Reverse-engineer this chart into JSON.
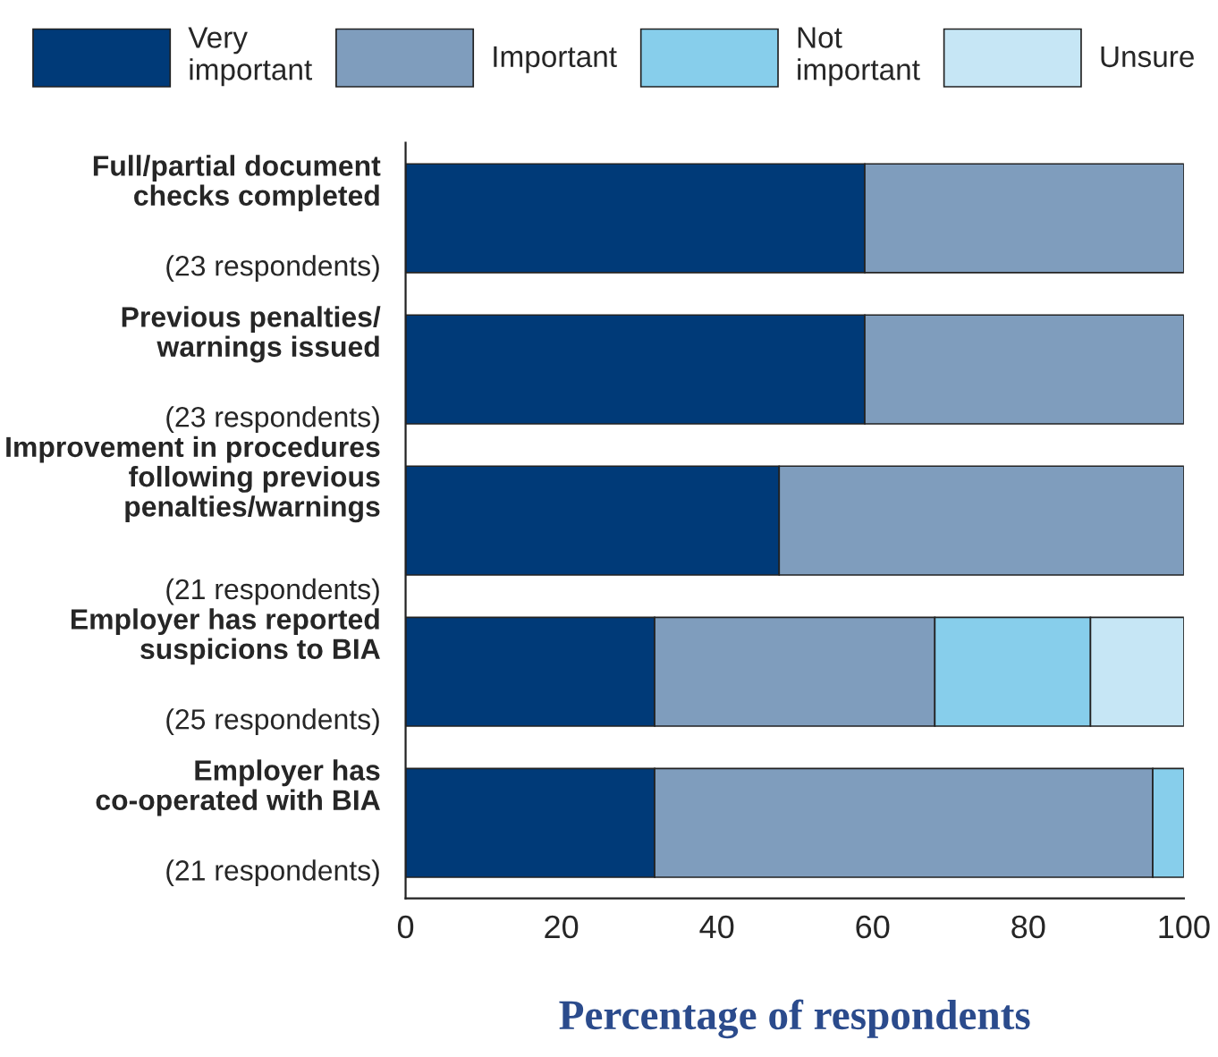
{
  "chart_data": {
    "type": "bar",
    "orientation": "horizontal",
    "stacked": true,
    "categories": [
      "Full/partial document\nchecks completed\n(23 respondents)",
      "Previous penalties/\nwarnings issued\n(23 respondents)",
      "Improvement in procedures\nfollowing previous\npenalties/warnings\n(21 respondents)",
      "Employer has reported\nsuspicions to BIA\n(25 respondents)",
      "Employer has\nco-operated with BIA\n(21 respondents)"
    ],
    "series": [
      {
        "name": "Very\nimportant",
        "color": "#003a78",
        "values": [
          59,
          59,
          48,
          32,
          32
        ]
      },
      {
        "name": "Important",
        "color": "#7f9dbd",
        "values": [
          41,
          41,
          52,
          36,
          64
        ]
      },
      {
        "name": "Not\nimportant",
        "color": "#87ceeb",
        "values": [
          0,
          0,
          0,
          20,
          4
        ]
      },
      {
        "name": "Unsure",
        "color": "#c6e6f5",
        "values": [
          0,
          0,
          0,
          12,
          0
        ]
      }
    ],
    "xlim": [
      0,
      100
    ],
    "xticks": [
      0,
      20,
      40,
      60,
      80,
      100
    ],
    "xlabel": "Percentage of respondents",
    "legend": "top",
    "grid": false
  }
}
